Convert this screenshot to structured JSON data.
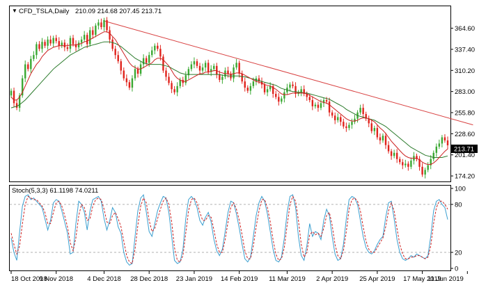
{
  "chart_data": [
    {
      "type": "candlestick",
      "title": "CFD_TSLA,Daily",
      "ohlc_header": "210.09 214.68 207.45 213.71",
      "last_price": "213.71",
      "ylim": [
        168,
        392
      ],
      "y_ticks": [
        "364.60",
        "337.40",
        "310.20",
        "283.00",
        "255.80",
        "228.60",
        "201.40",
        "174.20"
      ],
      "y_tick_values": [
        364.6,
        337.4,
        310.2,
        283.0,
        255.8,
        228.6,
        201.4,
        174.2
      ],
      "x_ticks": [
        "18 Oct 2018",
        "9 Nov 2018",
        "4 Dec 2018",
        "28 Dec 2018",
        "23 Jan 2019",
        "14 Feb 2019",
        "11 Mar 2019",
        "2 Apr 2019",
        "25 Apr 2019",
        "17 May 2019",
        "11 Jun 2019"
      ],
      "x_tick_bar_index": [
        0,
        16,
        33,
        49,
        65,
        81,
        98,
        114,
        130,
        146,
        162
      ],
      "closes": [
        284,
        268,
        262,
        278,
        300,
        318,
        312,
        325,
        330,
        344,
        338,
        347,
        342,
        350,
        345,
        352,
        348,
        342,
        346,
        340,
        338,
        352,
        344,
        340,
        346,
        350,
        356,
        344,
        362,
        356,
        368,
        372,
        366,
        375,
        362,
        350,
        338,
        330,
        322,
        310,
        300,
        295,
        288,
        300,
        312,
        306,
        318,
        326,
        320,
        330,
        336,
        342,
        338,
        328,
        310,
        302,
        294,
        286,
        282,
        290,
        298,
        294,
        304,
        312,
        318,
        322,
        316,
        310,
        314,
        320,
        308,
        312,
        316,
        305,
        298,
        302,
        310,
        306,
        300,
        314,
        320,
        306,
        296,
        288,
        284,
        290,
        296,
        300,
        296,
        292,
        282,
        286,
        290,
        280,
        276,
        270,
        274,
        282,
        288,
        292,
        290,
        280,
        282,
        286,
        280,
        276,
        272,
        264,
        266,
        262,
        268,
        272,
        270,
        256,
        252,
        246,
        250,
        244,
        238,
        236,
        240,
        244,
        248,
        256,
        262,
        254,
        248,
        242,
        232,
        236,
        224,
        220,
        226,
        214,
        206,
        200,
        204,
        196,
        192,
        188,
        190,
        186,
        194,
        200,
        196,
        186,
        176,
        182,
        188,
        196,
        204,
        212,
        216,
        224,
        220,
        213.71
      ],
      "ma_fast": [
        276,
        272,
        272,
        276,
        282,
        290,
        298,
        306,
        312,
        318,
        322,
        328,
        332,
        336,
        338,
        340,
        341,
        342,
        342,
        342,
        342,
        343,
        343,
        343,
        344,
        345,
        347,
        348,
        350,
        352,
        354,
        356,
        358,
        360,
        360,
        358,
        354,
        350,
        344,
        338,
        332,
        326,
        320,
        316,
        314,
        312,
        312,
        314,
        316,
        318,
        320,
        324,
        326,
        326,
        324,
        320,
        316,
        310,
        304,
        300,
        298,
        296,
        296,
        298,
        300,
        302,
        304,
        306,
        306,
        308,
        308,
        309,
        310,
        310,
        308,
        307,
        306,
        306,
        305,
        306,
        307,
        307,
        306,
        304,
        302,
        300,
        298,
        296,
        295,
        294,
        292,
        291,
        290,
        288,
        286,
        283,
        280,
        279,
        279,
        280,
        281,
        281,
        281,
        281,
        281,
        280,
        278,
        276,
        274,
        272,
        270,
        269,
        268,
        266,
        263,
        260,
        257,
        254,
        251,
        248,
        246,
        245,
        245,
        246,
        248,
        249,
        249,
        248,
        246,
        244,
        240,
        236,
        233,
        229,
        224,
        219,
        215,
        211,
        207,
        203,
        200,
        198,
        197,
        197,
        197,
        195,
        192,
        190,
        189,
        189,
        191,
        194,
        198,
        202,
        206,
        209
      ],
      "ma_slow": [
        262,
        263,
        264,
        266,
        269,
        272,
        276,
        280,
        284,
        288,
        292,
        296,
        300,
        304,
        308,
        312,
        315,
        318,
        321,
        324,
        327,
        330,
        332,
        334,
        336,
        338,
        340,
        341,
        342,
        343,
        344,
        345,
        346,
        347,
        347,
        347,
        346,
        345,
        343,
        341,
        338,
        335,
        332,
        329,
        326,
        324,
        322,
        320,
        319,
        318,
        318,
        318,
        318,
        318,
        317,
        316,
        315,
        313,
        311,
        309,
        307,
        306,
        305,
        305,
        305,
        305,
        305,
        305,
        305,
        305,
        305,
        305,
        305,
        305,
        305,
        304,
        304,
        303,
        303,
        303,
        303,
        303,
        302,
        302,
        301,
        300,
        299,
        298,
        297,
        296,
        295,
        294,
        293,
        292,
        291,
        289,
        287,
        286,
        285,
        284,
        283,
        283,
        282,
        282,
        281,
        281,
        280,
        279,
        278,
        277,
        276,
        275,
        274,
        273,
        271,
        269,
        267,
        265,
        263,
        260,
        258,
        256,
        254,
        252,
        251,
        250,
        249,
        248,
        247,
        246,
        244,
        242,
        240,
        238,
        235,
        232,
        229,
        226,
        223,
        220,
        217,
        214,
        211,
        209,
        207,
        205,
        203,
        201,
        200,
        199,
        198,
        198,
        198,
        198,
        199,
        200
      ],
      "trendline": {
        "from_bar": 33,
        "from_value": 374,
        "to_bar": 164,
        "to_value": 240
      },
      "colors": {
        "bull": "#3aa832",
        "bear": "#e0231c",
        "ma_fast": "#cc2020",
        "ma_slow": "#2a7a2a",
        "trendline": "#d84040"
      }
    },
    {
      "type": "line",
      "title": "Stoch(5,3,3) 61.1198 74.0211",
      "ylim": [
        0,
        100
      ],
      "y_ticks": [
        "100",
        "80",
        "20",
        "0"
      ],
      "y_tick_values": [
        100,
        80,
        20,
        0
      ],
      "levels": [
        80,
        20
      ],
      "series": [
        {
          "name": "61.1198",
          "color": "#3a9fd0",
          "values": [
            38,
            20,
            10,
            45,
            78,
            90,
            92,
            86,
            88,
            84,
            80,
            76,
            62,
            48,
            60,
            82,
            86,
            84,
            72,
            58,
            44,
            18,
            20,
            56,
            84,
            80,
            70,
            48,
            72,
            86,
            88,
            90,
            84,
            62,
            48,
            60,
            76,
            70,
            52,
            44,
            20,
            8,
            4,
            6,
            40,
            72,
            88,
            92,
            70,
            46,
            40,
            56,
            72,
            82,
            90,
            88,
            70,
            40,
            10,
            6,
            8,
            24,
            62,
            86,
            90,
            86,
            76,
            60,
            54,
            64,
            70,
            58,
            36,
            22,
            16,
            24,
            46,
            70,
            84,
            82,
            68,
            50,
            30,
            12,
            8,
            14,
            40,
            66,
            82,
            90,
            84,
            68,
            46,
            24,
            10,
            8,
            14,
            38,
            70,
            90,
            92,
            76,
            40,
            16,
            10,
            28,
            56,
            40,
            46,
            44,
            36,
            60,
            74,
            66,
            40,
            18,
            10,
            12,
            30,
            62,
            86,
            90,
            88,
            80,
            60,
            40,
            26,
            20,
            18,
            22,
            30,
            36,
            40,
            64,
            82,
            84,
            62,
            36,
            20,
            12,
            10,
            12,
            16,
            14,
            18,
            16,
            14,
            12,
            16,
            40,
            72,
            84,
            86,
            80,
            76,
            61.1198
          ]
        },
        {
          "name": "74.0211",
          "color": "#cc2020",
          "values": [
            44,
            30,
            18,
            28,
            56,
            80,
            90,
            88,
            86,
            86,
            82,
            78,
            70,
            56,
            56,
            70,
            82,
            84,
            78,
            66,
            52,
            32,
            22,
            38,
            66,
            80,
            76,
            60,
            62,
            78,
            86,
            88,
            86,
            74,
            58,
            56,
            66,
            70,
            62,
            52,
            34,
            16,
            8,
            6,
            24,
            54,
            78,
            88,
            82,
            60,
            46,
            50,
            62,
            74,
            84,
            88,
            80,
            58,
            26,
            10,
            8,
            16,
            44,
            72,
            86,
            88,
            82,
            70,
            60,
            60,
            66,
            64,
            48,
            30,
            20,
            20,
            36,
            58,
            76,
            82,
            74,
            60,
            42,
            22,
            12,
            12,
            28,
            52,
            72,
            86,
            86,
            76,
            58,
            36,
            18,
            10,
            12,
            26,
            54,
            80,
            90,
            84,
            60,
            30,
            14,
            20,
            42,
            46,
            42,
            44,
            40,
            50,
            66,
            70,
            54,
            30,
            16,
            12,
            22,
            46,
            74,
            86,
            88,
            84,
            72,
            52,
            34,
            24,
            20,
            20,
            26,
            32,
            38,
            52,
            72,
            82,
            72,
            50,
            30,
            18,
            12,
            12,
            14,
            14,
            16,
            16,
            14,
            12,
            14,
            28,
            56,
            76,
            84,
            84,
            80,
            74.0211
          ]
        }
      ]
    }
  ]
}
